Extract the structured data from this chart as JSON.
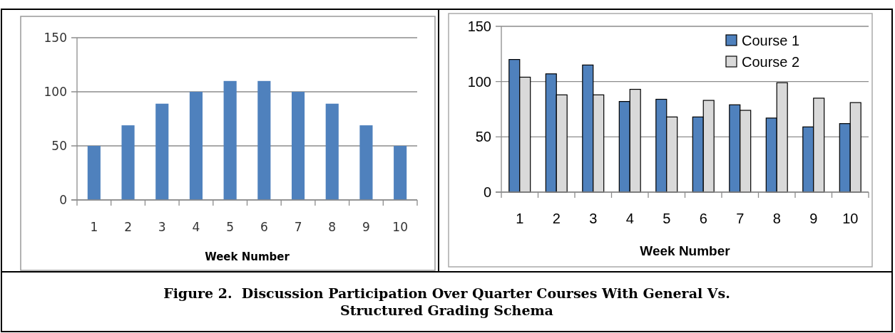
{
  "chart_data": [
    {
      "type": "bar",
      "xlabel": "Week Number",
      "categories": [
        "1",
        "2",
        "3",
        "4",
        "5",
        "6",
        "7",
        "8",
        "9",
        "10"
      ],
      "values": [
        50,
        69,
        89,
        100,
        110,
        110,
        100,
        89,
        69,
        50
      ],
      "color": "#4f81bd",
      "ylim": [
        0,
        150
      ],
      "yticks": [
        0,
        50,
        100,
        150
      ],
      "grid": "y",
      "legend": false
    },
    {
      "type": "bar",
      "xlabel": "Week Number",
      "categories": [
        "1",
        "2",
        "3",
        "4",
        "5",
        "6",
        "7",
        "8",
        "9",
        "10"
      ],
      "series": [
        {
          "name": "Course 1",
          "color": "#4f81bd",
          "values": [
            120,
            107,
            115,
            82,
            84,
            68,
            79,
            67,
            59,
            62
          ]
        },
        {
          "name": "Course 2",
          "color": "#d9d9d9",
          "values": [
            104,
            88,
            88,
            93,
            68,
            83,
            74,
            99,
            85,
            81
          ]
        }
      ],
      "ylim": [
        0,
        150
      ],
      "yticks": [
        0,
        50,
        100,
        150
      ],
      "grid": "y",
      "legend": "top right"
    },
    {
      "type": "other",
      "title": "Figure 2.  Discussion Participation Over Quarter Courses With General Vs. Structured Grading Schema"
    }
  ]
}
